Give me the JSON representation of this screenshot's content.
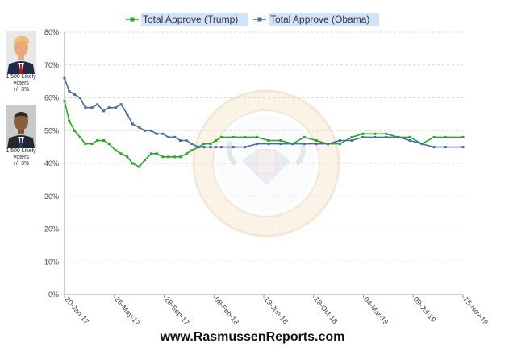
{
  "candidates": [
    {
      "name": "Trump",
      "caption": "1,500 Likely\nVoters\n+/- 3%"
    },
    {
      "name": "Obama",
      "caption": "1,500 Likely\nVoters\n+/- 3%"
    }
  ],
  "footer": {
    "site": "www.RasmussenReports.com"
  },
  "chart_data": {
    "type": "line",
    "title": "",
    "xlabel": "",
    "ylabel": "",
    "ylim": [
      0,
      80
    ],
    "y_ticks": [
      "0%",
      "10%",
      "20%",
      "30%",
      "40%",
      "50%",
      "60%",
      "70%",
      "80%"
    ],
    "x_ticks": [
      "20-Jan-17",
      "25-May-17",
      "28-Sep-17",
      "08-Feb-18",
      "13-Jun-18",
      "18-Oct-18",
      "04-Mar-19",
      "09-Jul-19",
      "15-Nov-19"
    ],
    "legend_position": "top",
    "grid": true,
    "background_image": "presidential-seal-watermark",
    "series": [
      {
        "name": "Total Approve (Trump)",
        "color": "#22aa22",
        "points": [
          [
            "2017-01-20",
            59
          ],
          [
            "2017-02-01",
            53
          ],
          [
            "2017-02-15",
            50
          ],
          [
            "2017-03-01",
            48
          ],
          [
            "2017-03-15",
            46
          ],
          [
            "2017-04-01",
            46
          ],
          [
            "2017-04-15",
            47
          ],
          [
            "2017-05-01",
            47
          ],
          [
            "2017-05-15",
            46
          ],
          [
            "2017-06-01",
            44
          ],
          [
            "2017-06-15",
            43
          ],
          [
            "2017-07-01",
            42
          ],
          [
            "2017-07-15",
            40
          ],
          [
            "2017-08-01",
            39
          ],
          [
            "2017-08-15",
            41
          ],
          [
            "2017-09-01",
            43
          ],
          [
            "2017-09-15",
            43
          ],
          [
            "2017-10-01",
            42
          ],
          [
            "2017-10-15",
            42
          ],
          [
            "2017-11-01",
            42
          ],
          [
            "2017-11-15",
            42
          ],
          [
            "2017-12-01",
            43
          ],
          [
            "2017-12-15",
            44
          ],
          [
            "2018-01-01",
            45
          ],
          [
            "2018-01-15",
            46
          ],
          [
            "2018-02-01",
            46
          ],
          [
            "2018-02-15",
            47
          ],
          [
            "2018-03-01",
            48
          ],
          [
            "2018-04-01",
            48
          ],
          [
            "2018-05-01",
            48
          ],
          [
            "2018-06-01",
            48
          ],
          [
            "2018-07-01",
            47
          ],
          [
            "2018-08-01",
            47
          ],
          [
            "2018-09-01",
            46
          ],
          [
            "2018-10-01",
            48
          ],
          [
            "2018-11-01",
            47
          ],
          [
            "2018-12-01",
            46
          ],
          [
            "2019-01-01",
            46
          ],
          [
            "2019-02-01",
            48
          ],
          [
            "2019-03-01",
            49
          ],
          [
            "2019-04-01",
            49
          ],
          [
            "2019-05-01",
            49
          ],
          [
            "2019-06-01",
            48
          ],
          [
            "2019-07-01",
            48
          ],
          [
            "2019-08-01",
            46
          ],
          [
            "2019-09-01",
            48
          ],
          [
            "2019-10-01",
            48
          ],
          [
            "2019-11-15",
            48
          ]
        ]
      },
      {
        "name": "Total Approve (Obama)",
        "color": "#4a6aa8",
        "points": [
          [
            "2017-01-20",
            66
          ],
          [
            "2017-02-01",
            62
          ],
          [
            "2017-02-15",
            61
          ],
          [
            "2017-03-01",
            60
          ],
          [
            "2017-03-15",
            57
          ],
          [
            "2017-04-01",
            57
          ],
          [
            "2017-04-15",
            58
          ],
          [
            "2017-05-01",
            56
          ],
          [
            "2017-05-15",
            57
          ],
          [
            "2017-06-01",
            57
          ],
          [
            "2017-06-15",
            58
          ],
          [
            "2017-07-01",
            55
          ],
          [
            "2017-07-15",
            52
          ],
          [
            "2017-08-01",
            51
          ],
          [
            "2017-08-15",
            50
          ],
          [
            "2017-09-01",
            50
          ],
          [
            "2017-09-15",
            49
          ],
          [
            "2017-10-01",
            49
          ],
          [
            "2017-10-15",
            48
          ],
          [
            "2017-11-01",
            48
          ],
          [
            "2017-11-15",
            47
          ],
          [
            "2017-12-01",
            47
          ],
          [
            "2017-12-15",
            46
          ],
          [
            "2018-01-01",
            45
          ],
          [
            "2018-01-15",
            45
          ],
          [
            "2018-02-01",
            45
          ],
          [
            "2018-02-15",
            45
          ],
          [
            "2018-03-01",
            45
          ],
          [
            "2018-04-01",
            45
          ],
          [
            "2018-05-01",
            45
          ],
          [
            "2018-06-01",
            46
          ],
          [
            "2018-07-01",
            46
          ],
          [
            "2018-08-01",
            46
          ],
          [
            "2018-09-01",
            46
          ],
          [
            "2018-10-01",
            46
          ],
          [
            "2018-11-01",
            46
          ],
          [
            "2018-12-01",
            46
          ],
          [
            "2019-01-01",
            47
          ],
          [
            "2019-02-01",
            47
          ],
          [
            "2019-03-01",
            48
          ],
          [
            "2019-04-01",
            48
          ],
          [
            "2019-05-01",
            48
          ],
          [
            "2019-06-01",
            48
          ],
          [
            "2019-07-01",
            47
          ],
          [
            "2019-08-01",
            46
          ],
          [
            "2019-09-01",
            45
          ],
          [
            "2019-10-01",
            45
          ],
          [
            "2019-11-15",
            45
          ]
        ]
      }
    ]
  }
}
